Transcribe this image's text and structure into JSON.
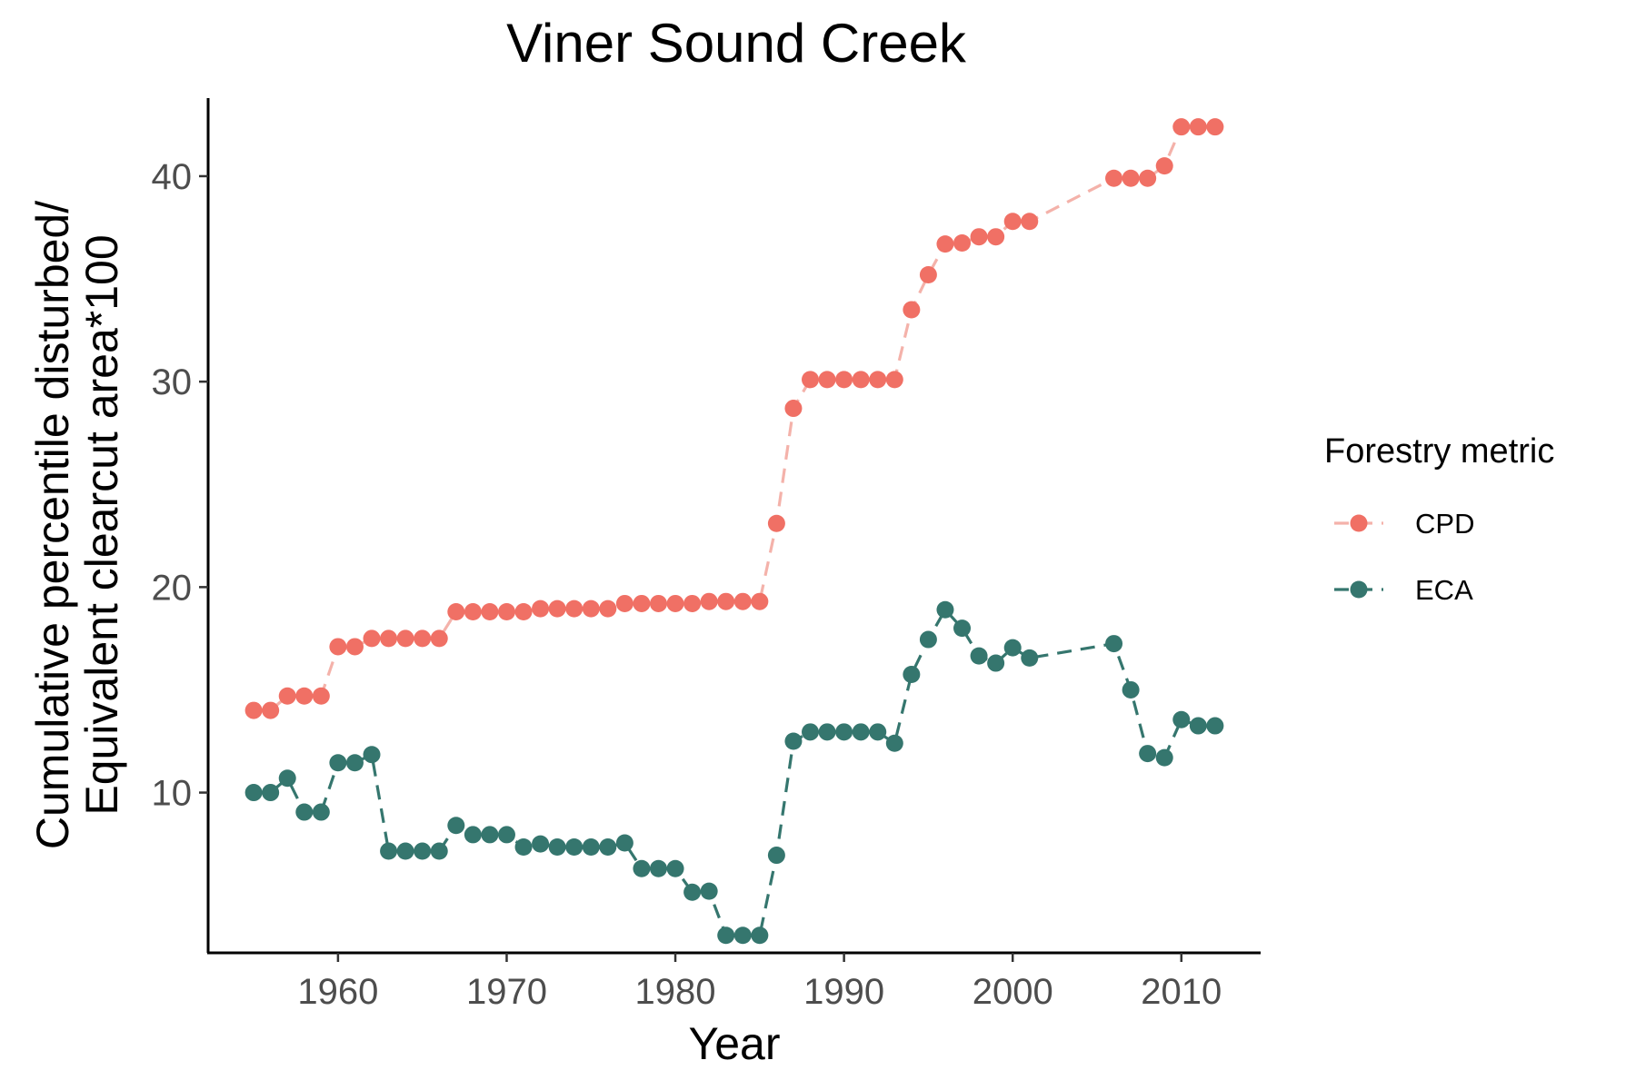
{
  "chart_data": {
    "type": "line",
    "title": "Viner Sound Creek",
    "xlabel": "Year",
    "ylabel_lines": [
      "Cumulative percentile disturbed/",
      "Equivalent clearcut area*100"
    ],
    "xlim": [
      1952.3,
      2014.7
    ],
    "ylim": [
      2.2,
      43.8
    ],
    "x_ticks": [
      1960,
      1970,
      1980,
      1990,
      2000,
      2010
    ],
    "y_ticks": [
      10,
      20,
      30,
      40
    ],
    "grid": false,
    "legend": {
      "title": "Forestry metric",
      "position": "right"
    },
    "series": [
      {
        "name": "CPD",
        "color": "#f07065",
        "line_color": "#f4b2aa",
        "dash": "dashed",
        "points": [
          [
            1955,
            14.0
          ],
          [
            1956,
            14.0
          ],
          [
            1957,
            14.7
          ],
          [
            1958,
            14.7
          ],
          [
            1959,
            14.7
          ],
          [
            1960,
            17.1
          ],
          [
            1961,
            17.1
          ],
          [
            1962,
            17.5
          ],
          [
            1963,
            17.5
          ],
          [
            1964,
            17.5
          ],
          [
            1965,
            17.5
          ],
          [
            1966,
            17.5
          ],
          [
            1967,
            18.8
          ],
          [
            1968,
            18.8
          ],
          [
            1969,
            18.8
          ],
          [
            1970,
            18.8
          ],
          [
            1971,
            18.8
          ],
          [
            1972,
            18.95
          ],
          [
            1973,
            18.95
          ],
          [
            1974,
            18.95
          ],
          [
            1975,
            18.95
          ],
          [
            1976,
            18.95
          ],
          [
            1977,
            19.2
          ],
          [
            1978,
            19.2
          ],
          [
            1979,
            19.2
          ],
          [
            1980,
            19.2
          ],
          [
            1981,
            19.2
          ],
          [
            1982,
            19.3
          ],
          [
            1983,
            19.3
          ],
          [
            1984,
            19.3
          ],
          [
            1985,
            19.3
          ],
          [
            1986,
            23.1
          ],
          [
            1987,
            28.7
          ],
          [
            1988,
            30.1
          ],
          [
            1989,
            30.1
          ],
          [
            1990,
            30.1
          ],
          [
            1991,
            30.1
          ],
          [
            1992,
            30.1
          ],
          [
            1993,
            30.1
          ],
          [
            1994,
            33.5
          ],
          [
            1995,
            35.2
          ],
          [
            1996,
            36.7
          ],
          [
            1997,
            36.75
          ],
          [
            1998,
            37.05
          ],
          [
            1999,
            37.05
          ],
          [
            2000,
            37.8
          ],
          [
            2001,
            37.8
          ],
          [
            2006,
            39.9
          ],
          [
            2007,
            39.9
          ],
          [
            2008,
            39.9
          ],
          [
            2009,
            40.5
          ],
          [
            2010,
            42.4
          ],
          [
            2011,
            42.4
          ],
          [
            2012,
            42.4
          ]
        ]
      },
      {
        "name": "ECA",
        "color": "#35766e",
        "line_color": "#35766e",
        "dash": "dashed",
        "points": [
          [
            1955,
            10.0
          ],
          [
            1956,
            10.0
          ],
          [
            1957,
            10.7
          ],
          [
            1958,
            9.05
          ],
          [
            1959,
            9.05
          ],
          [
            1960,
            11.45
          ],
          [
            1961,
            11.45
          ],
          [
            1962,
            11.85
          ],
          [
            1963,
            7.15
          ],
          [
            1964,
            7.15
          ],
          [
            1965,
            7.15
          ],
          [
            1966,
            7.15
          ],
          [
            1967,
            8.4
          ],
          [
            1968,
            7.95
          ],
          [
            1969,
            7.95
          ],
          [
            1970,
            7.95
          ],
          [
            1971,
            7.35
          ],
          [
            1972,
            7.5
          ],
          [
            1973,
            7.35
          ],
          [
            1974,
            7.35
          ],
          [
            1975,
            7.35
          ],
          [
            1976,
            7.35
          ],
          [
            1977,
            7.55
          ],
          [
            1978,
            6.3
          ],
          [
            1979,
            6.3
          ],
          [
            1980,
            6.3
          ],
          [
            1981,
            5.15
          ],
          [
            1982,
            5.2
          ],
          [
            1983,
            3.05
          ],
          [
            1984,
            3.05
          ],
          [
            1985,
            3.05
          ],
          [
            1986,
            6.95
          ],
          [
            1987,
            12.5
          ],
          [
            1988,
            12.95
          ],
          [
            1989,
            12.95
          ],
          [
            1990,
            12.95
          ],
          [
            1991,
            12.95
          ],
          [
            1992,
            12.95
          ],
          [
            1993,
            12.4
          ],
          [
            1994,
            15.75
          ],
          [
            1995,
            17.45
          ],
          [
            1996,
            18.9
          ],
          [
            1997,
            18.0
          ],
          [
            1998,
            16.65
          ],
          [
            1999,
            16.3
          ],
          [
            2000,
            17.05
          ],
          [
            2001,
            16.55
          ],
          [
            2006,
            17.25
          ],
          [
            2007,
            15.0
          ],
          [
            2008,
            11.9
          ],
          [
            2009,
            11.7
          ],
          [
            2010,
            13.55
          ],
          [
            2011,
            13.25
          ],
          [
            2012,
            13.25
          ]
        ]
      }
    ]
  }
}
